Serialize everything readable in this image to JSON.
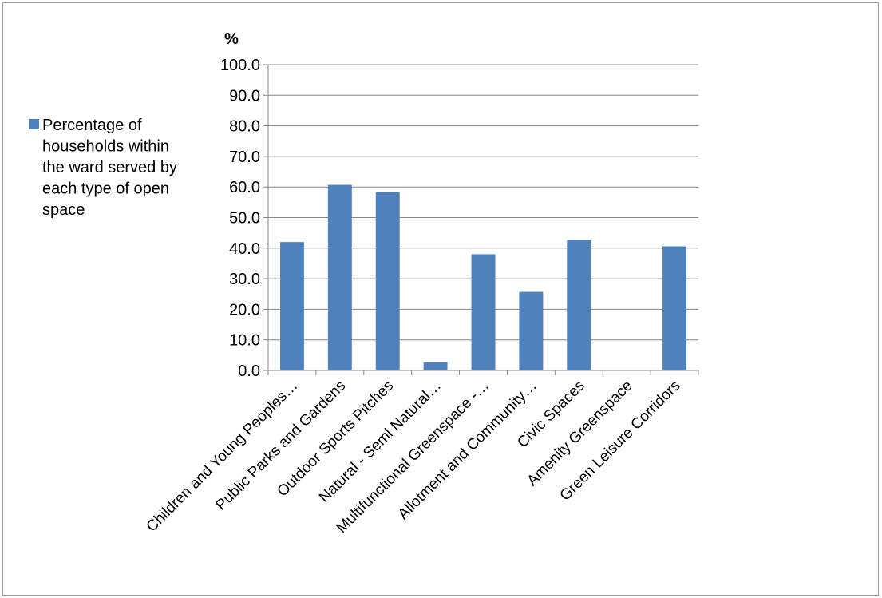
{
  "chart_data": {
    "type": "bar",
    "ylabel": "%",
    "ylim": [
      0,
      100
    ],
    "yticks": [
      "0.0",
      "10.0",
      "20.0",
      "30.0",
      "40.0",
      "50.0",
      "60.0",
      "70.0",
      "80.0",
      "90.0",
      "100.0"
    ],
    "grid": true,
    "legend_position": "left",
    "categories": [
      "Children and Young Peoples…",
      "Public Parks and Gardens",
      "Outdoor Sports Pitches",
      "Natural - Semi Natural…",
      "Multifunctional Greenspace -…",
      "Allotment and Community…",
      "Civic Spaces",
      "Amenity Greenspace",
      "Green Leisure Corridors"
    ],
    "series": [
      {
        "name": "Percentage of households within the ward served by each type of open space",
        "legend_lines": [
          "Percentage of",
          "households within",
          "the ward served by",
          "each type of open",
          "space"
        ],
        "values": [
          42.0,
          60.7,
          58.3,
          2.7,
          38.0,
          25.7,
          42.7,
          0.0,
          40.6
        ],
        "color": "#4f81bd"
      }
    ]
  }
}
